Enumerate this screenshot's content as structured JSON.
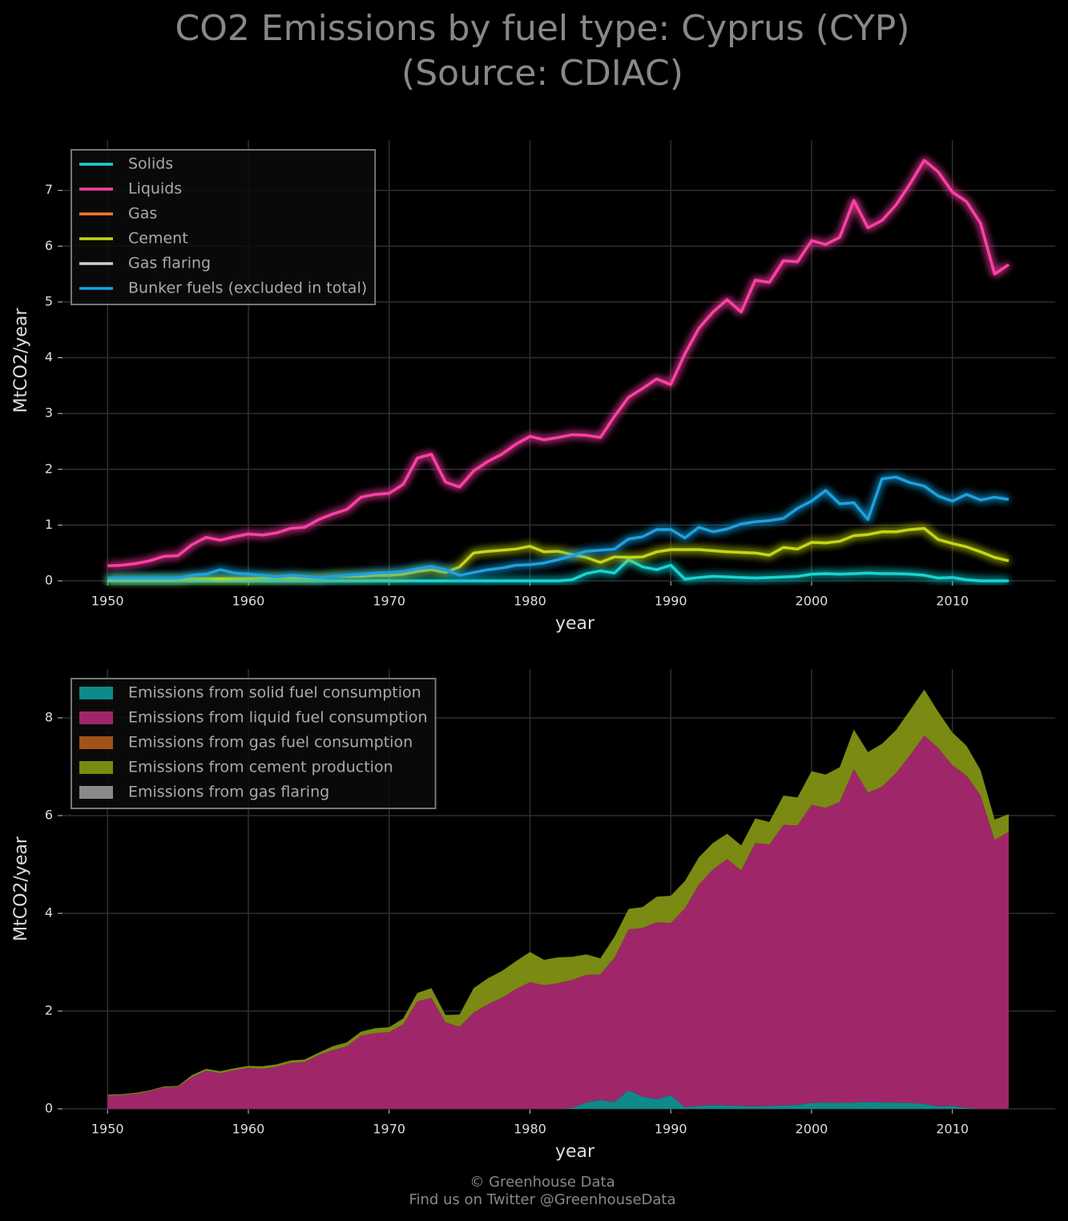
{
  "title": "CO2 Emissions by fuel type: Cyprus (CYP)",
  "subtitle": "(Source: CDIAC)",
  "footer": [
    "© Greenhouse Data",
    "Find us on Twitter @GreenhouseData"
  ],
  "chart_data": [
    {
      "type": "line",
      "xlabel": "year",
      "ylabel": "MtCO2/year",
      "x": [
        1950,
        1951,
        1952,
        1953,
        1954,
        1955,
        1956,
        1957,
        1958,
        1959,
        1960,
        1961,
        1962,
        1963,
        1964,
        1965,
        1966,
        1967,
        1968,
        1969,
        1970,
        1971,
        1972,
        1973,
        1974,
        1975,
        1976,
        1977,
        1978,
        1979,
        1980,
        1981,
        1982,
        1983,
        1984,
        1985,
        1986,
        1987,
        1988,
        1989,
        1990,
        1991,
        1992,
        1993,
        1994,
        1995,
        1996,
        1997,
        1998,
        1999,
        2000,
        2001,
        2002,
        2003,
        2004,
        2005,
        2006,
        2007,
        2008,
        2009,
        2010,
        2011,
        2012,
        2013,
        2014
      ],
      "xlim": [
        1946.8,
        2017.3
      ],
      "xticks": [
        1950,
        1960,
        1970,
        1980,
        1990,
        2000,
        2010
      ],
      "ylim": [
        0,
        7.9
      ],
      "yticks": [
        0,
        1,
        2,
        3,
        4,
        5,
        6,
        7
      ],
      "grid": true,
      "legend": "upper left",
      "series": [
        {
          "name": "Solids",
          "color": "#17d4d4",
          "values": [
            0,
            0,
            0,
            0,
            0,
            0,
            0,
            0,
            0,
            0,
            0,
            0,
            0,
            0,
            0,
            0,
            0,
            0,
            0,
            0,
            0,
            0,
            0,
            0,
            0,
            0,
            0,
            0,
            0,
            0,
            0,
            0,
            0,
            0.02,
            0.13,
            0.18,
            0.14,
            0.38,
            0.25,
            0.2,
            0.28,
            0.03,
            0.06,
            0.08,
            0.07,
            0.06,
            0.05,
            0.06,
            0.07,
            0.08,
            0.12,
            0.13,
            0.12,
            0.13,
            0.14,
            0.13,
            0.13,
            0.12,
            0.1,
            0.05,
            0.06,
            0.02,
            0,
            0,
            0
          ]
        },
        {
          "name": "Liquids",
          "color": "#ff3fa4",
          "values": [
            0.27,
            0.28,
            0.31,
            0.36,
            0.44,
            0.45,
            0.65,
            0.78,
            0.73,
            0.79,
            0.84,
            0.82,
            0.86,
            0.94,
            0.96,
            1.1,
            1.2,
            1.28,
            1.5,
            1.55,
            1.57,
            1.73,
            2.2,
            2.27,
            1.77,
            1.68,
            1.97,
            2.14,
            2.27,
            2.45,
            2.59,
            2.53,
            2.57,
            2.62,
            2.61,
            2.57,
            2.95,
            3.29,
            3.45,
            3.62,
            3.52,
            4.07,
            4.53,
            4.82,
            5.04,
            4.82,
            5.39,
            5.35,
            5.74,
            5.72,
            6.1,
            6.03,
            6.16,
            6.82,
            6.33,
            6.46,
            6.74,
            7.12,
            7.54,
            7.33,
            6.97,
            6.8,
            6.41,
            5.5,
            5.67
          ]
        },
        {
          "name": "Gas",
          "color": "#f57c2a",
          "values": [
            0,
            0,
            0,
            0,
            0,
            0,
            0,
            0,
            0,
            0,
            0,
            0,
            0,
            0,
            0,
            0,
            0,
            0,
            0,
            0,
            0,
            0,
            0,
            0,
            0,
            0,
            0,
            0,
            0,
            0,
            0,
            0,
            0,
            0,
            0,
            0,
            0,
            0,
            0,
            0,
            0,
            0,
            0,
            0,
            0,
            0,
            0,
            0,
            0,
            0,
            0,
            0,
            0,
            0,
            0,
            0,
            0,
            0,
            0,
            0,
            0,
            0,
            0,
            0,
            0
          ]
        },
        {
          "name": "Cement",
          "color": "#c4d619",
          "values": [
            0.02,
            0.02,
            0.02,
            0.02,
            0.02,
            0.02,
            0.04,
            0.04,
            0.04,
            0.04,
            0.04,
            0.05,
            0.05,
            0.05,
            0.05,
            0.05,
            0.08,
            0.08,
            0.08,
            0.1,
            0.1,
            0.12,
            0.17,
            0.2,
            0.15,
            0.25,
            0.5,
            0.53,
            0.55,
            0.57,
            0.62,
            0.52,
            0.53,
            0.47,
            0.42,
            0.33,
            0.43,
            0.42,
            0.43,
            0.52,
            0.56,
            0.56,
            0.56,
            0.54,
            0.52,
            0.51,
            0.5,
            0.46,
            0.6,
            0.57,
            0.69,
            0.68,
            0.71,
            0.81,
            0.83,
            0.88,
            0.88,
            0.92,
            0.94,
            0.74,
            0.67,
            0.61,
            0.52,
            0.42,
            0.36
          ]
        },
        {
          "name": "Gas flaring",
          "color": "#d0d0d0",
          "values": [
            0,
            0,
            0,
            0,
            0,
            0,
            0,
            0,
            0,
            0,
            0,
            0,
            0,
            0,
            0,
            0,
            0,
            0,
            0,
            0,
            0,
            0,
            0,
            0,
            0,
            0,
            0,
            0,
            0,
            0,
            0,
            0,
            0,
            0,
            0,
            0,
            0,
            0,
            0,
            0,
            0,
            0,
            0,
            0,
            0,
            0,
            0,
            0,
            0,
            0,
            0,
            0,
            0,
            0,
            0,
            0,
            0,
            0,
            0,
            0,
            0,
            0,
            0,
            0,
            0
          ]
        },
        {
          "name": "Bunker fuels (excluded in total)",
          "color": "#1ba1e2",
          "values": [
            0.05,
            0.05,
            0.05,
            0.05,
            0.05,
            0.05,
            0.1,
            0.12,
            0.2,
            0.14,
            0.12,
            0.1,
            0.07,
            0.1,
            0.08,
            0.06,
            0.08,
            0.1,
            0.12,
            0.14,
            0.15,
            0.17,
            0.22,
            0.26,
            0.2,
            0.1,
            0.15,
            0.2,
            0.23,
            0.28,
            0.29,
            0.32,
            0.38,
            0.45,
            0.53,
            0.55,
            0.57,
            0.75,
            0.79,
            0.92,
            0.92,
            0.77,
            0.96,
            0.88,
            0.93,
            1.02,
            1.06,
            1.08,
            1.12,
            1.3,
            1.43,
            1.62,
            1.38,
            1.4,
            1.1,
            1.83,
            1.86,
            1.76,
            1.7,
            1.52,
            1.43,
            1.55,
            1.45,
            1.5,
            1.46
          ]
        }
      ]
    },
    {
      "type": "stacked_area",
      "xlabel": "year",
      "ylabel": "MtCO2/year",
      "x": [
        1950,
        1951,
        1952,
        1953,
        1954,
        1955,
        1956,
        1957,
        1958,
        1959,
        1960,
        1961,
        1962,
        1963,
        1964,
        1965,
        1966,
        1967,
        1968,
        1969,
        1970,
        1971,
        1972,
        1973,
        1974,
        1975,
        1976,
        1977,
        1978,
        1979,
        1980,
        1981,
        1982,
        1983,
        1984,
        1985,
        1986,
        1987,
        1988,
        1989,
        1990,
        1991,
        1992,
        1993,
        1994,
        1995,
        1996,
        1997,
        1998,
        1999,
        2000,
        2001,
        2002,
        2003,
        2004,
        2005,
        2006,
        2007,
        2008,
        2009,
        2010,
        2011,
        2012,
        2013,
        2014
      ],
      "xlim": [
        1946.8,
        2017.3
      ],
      "xticks": [
        1950,
        1960,
        1970,
        1980,
        1990,
        2000,
        2010
      ],
      "ylim": [
        0,
        9.0
      ],
      "yticks": [
        0,
        2,
        4,
        6,
        8
      ],
      "grid": true,
      "legend": "upper left",
      "series": [
        {
          "name": "Emissions from solid fuel consumption",
          "color": "#0d8a8a",
          "values": [
            0,
            0,
            0,
            0,
            0,
            0,
            0,
            0,
            0,
            0,
            0,
            0,
            0,
            0,
            0,
            0,
            0,
            0,
            0,
            0,
            0,
            0,
            0,
            0,
            0,
            0,
            0,
            0,
            0,
            0,
            0,
            0,
            0,
            0.02,
            0.13,
            0.18,
            0.14,
            0.38,
            0.25,
            0.2,
            0.28,
            0.03,
            0.06,
            0.08,
            0.07,
            0.06,
            0.05,
            0.06,
            0.07,
            0.08,
            0.12,
            0.13,
            0.12,
            0.13,
            0.14,
            0.13,
            0.13,
            0.12,
            0.1,
            0.05,
            0.06,
            0.02,
            0,
            0,
            0
          ]
        },
        {
          "name": "Emissions from liquid fuel consumption",
          "color": "#a0266a",
          "values": [
            0.27,
            0.28,
            0.31,
            0.36,
            0.44,
            0.45,
            0.65,
            0.78,
            0.73,
            0.79,
            0.84,
            0.82,
            0.86,
            0.94,
            0.96,
            1.1,
            1.2,
            1.28,
            1.5,
            1.55,
            1.57,
            1.73,
            2.2,
            2.27,
            1.77,
            1.68,
            1.97,
            2.14,
            2.27,
            2.45,
            2.59,
            2.53,
            2.57,
            2.62,
            2.61,
            2.57,
            2.95,
            3.29,
            3.45,
            3.62,
            3.52,
            4.07,
            4.53,
            4.82,
            5.04,
            4.82,
            5.39,
            5.35,
            5.74,
            5.72,
            6.1,
            6.03,
            6.16,
            6.82,
            6.33,
            6.46,
            6.74,
            7.12,
            7.54,
            7.33,
            6.97,
            6.8,
            6.41,
            5.5,
            5.67
          ]
        },
        {
          "name": "Emissions from gas fuel consumption",
          "color": "#a0521a",
          "values": [
            0,
            0,
            0,
            0,
            0,
            0,
            0,
            0,
            0,
            0,
            0,
            0,
            0,
            0,
            0,
            0,
            0,
            0,
            0,
            0,
            0,
            0,
            0,
            0,
            0,
            0,
            0,
            0,
            0,
            0,
            0,
            0,
            0,
            0,
            0,
            0,
            0,
            0,
            0,
            0,
            0,
            0,
            0,
            0,
            0,
            0,
            0,
            0,
            0,
            0,
            0,
            0,
            0,
            0,
            0,
            0,
            0,
            0,
            0,
            0,
            0,
            0,
            0,
            0,
            0
          ]
        },
        {
          "name": "Emissions from cement production",
          "color": "#7a8a12",
          "values": [
            0.02,
            0.02,
            0.02,
            0.02,
            0.02,
            0.02,
            0.04,
            0.04,
            0.04,
            0.04,
            0.04,
            0.05,
            0.05,
            0.05,
            0.05,
            0.05,
            0.08,
            0.08,
            0.08,
            0.1,
            0.1,
            0.12,
            0.17,
            0.2,
            0.15,
            0.25,
            0.5,
            0.53,
            0.55,
            0.57,
            0.62,
            0.52,
            0.53,
            0.47,
            0.42,
            0.33,
            0.43,
            0.42,
            0.43,
            0.52,
            0.56,
            0.56,
            0.56,
            0.54,
            0.52,
            0.51,
            0.5,
            0.46,
            0.6,
            0.57,
            0.69,
            0.68,
            0.71,
            0.81,
            0.83,
            0.88,
            0.88,
            0.92,
            0.94,
            0.74,
            0.67,
            0.61,
            0.52,
            0.42,
            0.36
          ]
        },
        {
          "name": "Emissions from gas flaring",
          "color": "#8a8a8a",
          "values": [
            0,
            0,
            0,
            0,
            0,
            0,
            0,
            0,
            0,
            0,
            0,
            0,
            0,
            0,
            0,
            0,
            0,
            0,
            0,
            0,
            0,
            0,
            0,
            0,
            0,
            0,
            0,
            0,
            0,
            0,
            0,
            0,
            0,
            0,
            0,
            0,
            0,
            0,
            0,
            0,
            0,
            0,
            0,
            0,
            0,
            0,
            0,
            0,
            0,
            0,
            0,
            0,
            0,
            0,
            0,
            0,
            0,
            0,
            0,
            0,
            0,
            0,
            0,
            0,
            0
          ]
        }
      ]
    }
  ]
}
